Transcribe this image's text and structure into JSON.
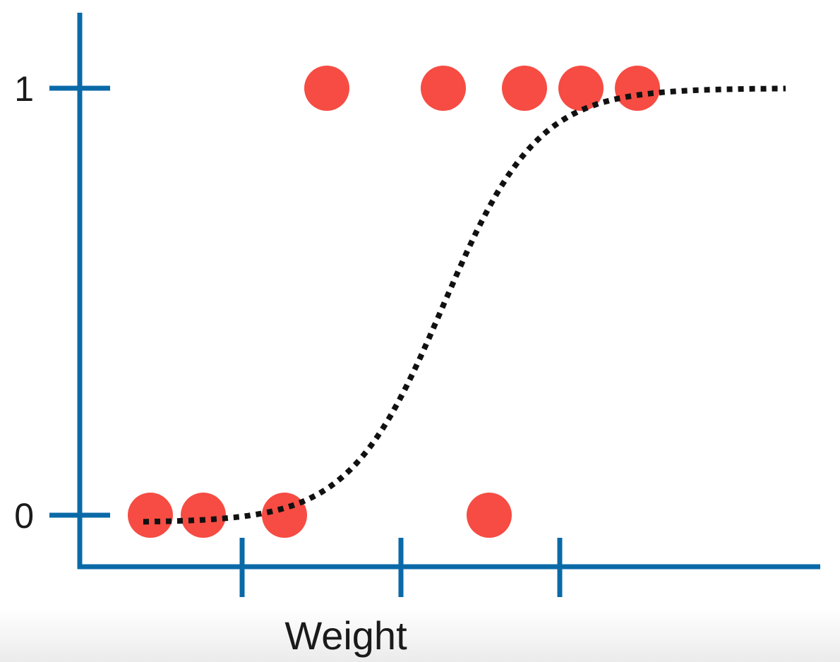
{
  "chart_data": {
    "type": "scatter",
    "xlabel": "Weight",
    "ylabel": "",
    "y_ticks": [
      "0",
      "1"
    ],
    "x_ticks": [
      "",
      "",
      ""
    ],
    "xlim": [
      0,
      10
    ],
    "ylim": [
      0,
      1
    ],
    "grid": false,
    "points": [
      {
        "x": 1.0,
        "y": 0
      },
      {
        "x": 1.75,
        "y": 0
      },
      {
        "x": 2.9,
        "y": 0
      },
      {
        "x": 5.8,
        "y": 0
      },
      {
        "x": 3.5,
        "y": 1
      },
      {
        "x": 5.15,
        "y": 1
      },
      {
        "x": 6.3,
        "y": 1
      },
      {
        "x": 7.1,
        "y": 1
      },
      {
        "x": 7.9,
        "y": 1
      }
    ],
    "fit_curve": {
      "type": "logistic",
      "style": "dotted",
      "color": "#111111",
      "x_range": [
        0.9,
        10.0
      ]
    },
    "colors": {
      "axis": "#0a6aa8",
      "points": "#f64c43",
      "curve": "#111111"
    }
  }
}
